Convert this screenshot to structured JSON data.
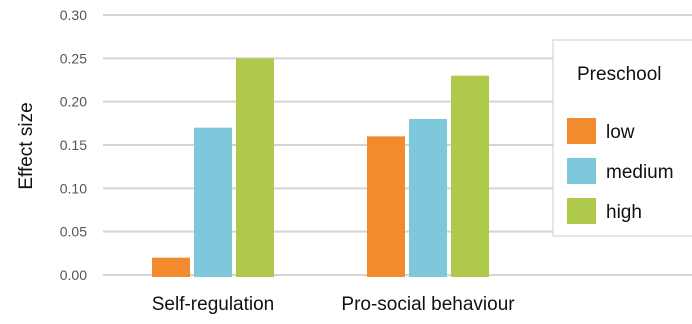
{
  "chart_data": {
    "type": "bar",
    "ylabel": "Effect size",
    "ylim": [
      0,
      0.3
    ],
    "yticks": [
      "0.00",
      "0.05",
      "0.10",
      "0.15",
      "0.20",
      "0.25",
      "0.30"
    ],
    "grid": "horizontal",
    "categories": [
      "Self-regulation",
      "Pro-social behaviour"
    ],
    "legend": {
      "title": "Preschool",
      "placement": "right"
    },
    "series": [
      {
        "name": "low",
        "color": "#F28A2E",
        "values": [
          0.02,
          0.16
        ]
      },
      {
        "name": "medium",
        "color": "#7EC8DC",
        "values": [
          0.17,
          0.18
        ]
      },
      {
        "name": "high",
        "color": "#AFC94A",
        "values": [
          0.25,
          0.23
        ]
      }
    ]
  }
}
